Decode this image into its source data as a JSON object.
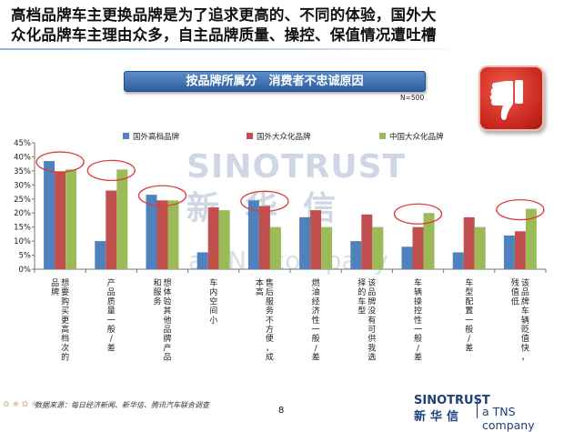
{
  "slide": {
    "title_line1": "高档品牌车主更换品牌是为了追求更高的、不同的体验，国外大",
    "title_line2": "众化品牌车主理由众多，自主品牌质量、操控、保值情况遭吐槽",
    "sample_size": "N=500",
    "source": "数据来源：每日经济新闻、新华信、腾讯汽车联合调查",
    "page_number": "8",
    "watermark_brand": "SINOTRUST",
    "watermark_cn": "新华信",
    "watermark_tns": "a TNS company",
    "logo_brand": "SINOTRUST",
    "logo_cn": "新华信",
    "logo_tns": "a TNS company",
    "icon": "thumbs-down-icon"
  },
  "chart_data": {
    "type": "bar",
    "title": "按品牌所属分　消费者不忠诚原因",
    "ylim": [
      0,
      0.45
    ],
    "yticks": [
      "0%",
      "5%",
      "10%",
      "15%",
      "20%",
      "25%",
      "30%",
      "35%",
      "40%",
      "45%"
    ],
    "legend_position": "top",
    "categories": [
      "想要购买更高档次的品牌",
      "产品质量一般/差",
      "想体验其他品牌产品和服务",
      "车内空间小",
      "售后服务不方便，成本高",
      "燃油经济性一般/差",
      "该品牌没有可供我选择的车型",
      "车辆操控性一般/差",
      "车型配置一般/差",
      "该品牌车辆贬值快，残值低"
    ],
    "series": [
      {
        "name": "国外高档品牌",
        "color": "#4f81bd",
        "values": [
          0.385,
          0.1,
          0.265,
          0.06,
          0.245,
          0.185,
          0.1,
          0.08,
          0.06,
          0.12
        ]
      },
      {
        "name": "国外大众化品牌",
        "color": "#c0504d",
        "values": [
          0.345,
          0.28,
          0.245,
          0.22,
          0.225,
          0.21,
          0.195,
          0.15,
          0.185,
          0.135
        ]
      },
      {
        "name": "中国大众化品牌",
        "color": "#9bbb59",
        "values": [
          0.355,
          0.355,
          0.245,
          0.21,
          0.15,
          0.15,
          0.15,
          0.2,
          0.15,
          0.215
        ]
      }
    ],
    "highlighted_categories": [
      0,
      1,
      2,
      4,
      7,
      9
    ],
    "highlight_color": "#e03b3b"
  }
}
